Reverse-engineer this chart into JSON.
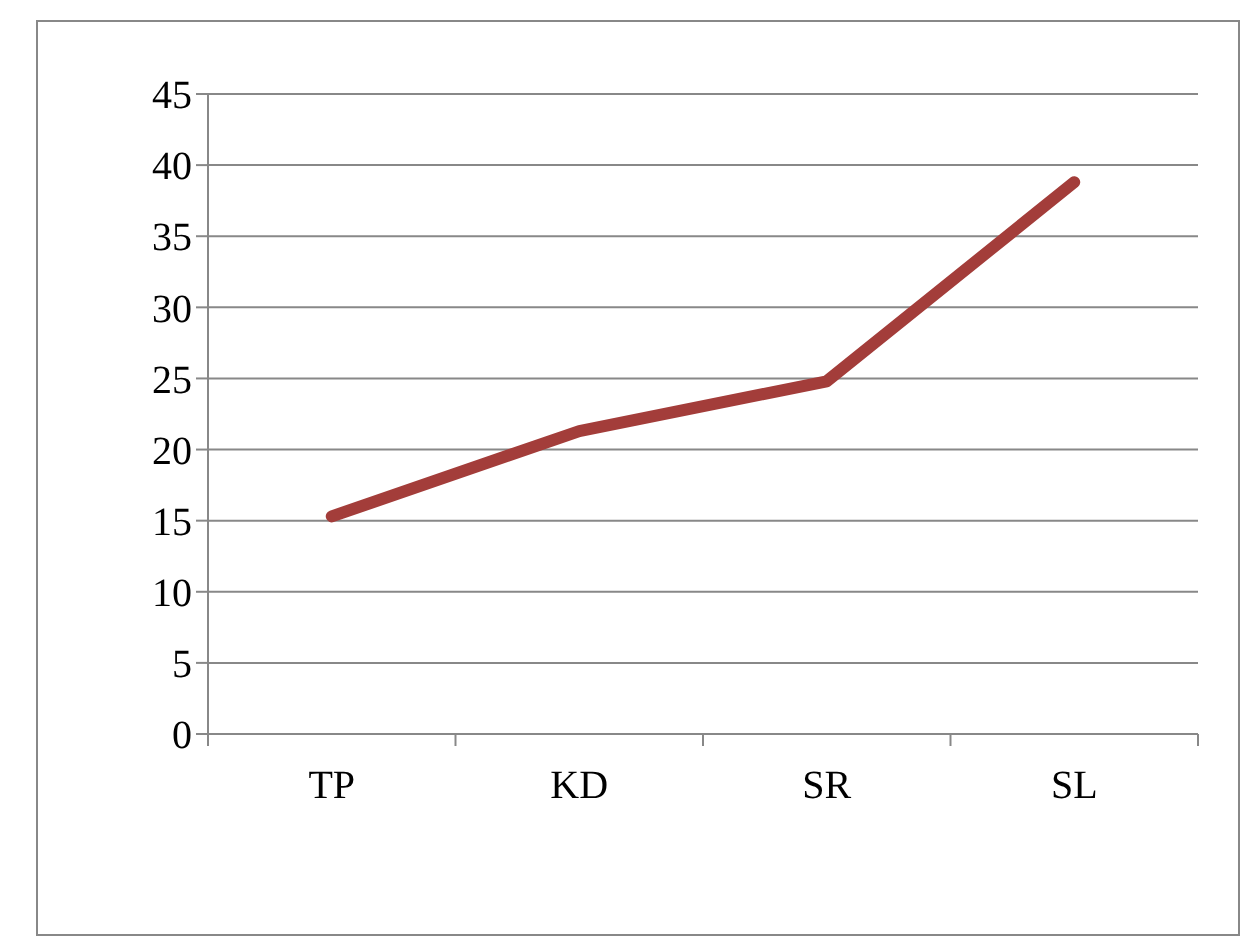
{
  "chart_data": {
    "type": "line",
    "categories": [
      "TP",
      "KD",
      "SR",
      "SL"
    ],
    "series": [
      {
        "color": "#a33d3a",
        "values": [
          15.3,
          21.3,
          24.8,
          38.8
        ]
      }
    ],
    "ylim": [
      0,
      45
    ],
    "yticks": [
      0,
      5,
      10,
      15,
      20,
      25,
      30,
      35,
      40,
      45
    ],
    "grid": "y",
    "marker": "none",
    "line_style": "solid"
  }
}
